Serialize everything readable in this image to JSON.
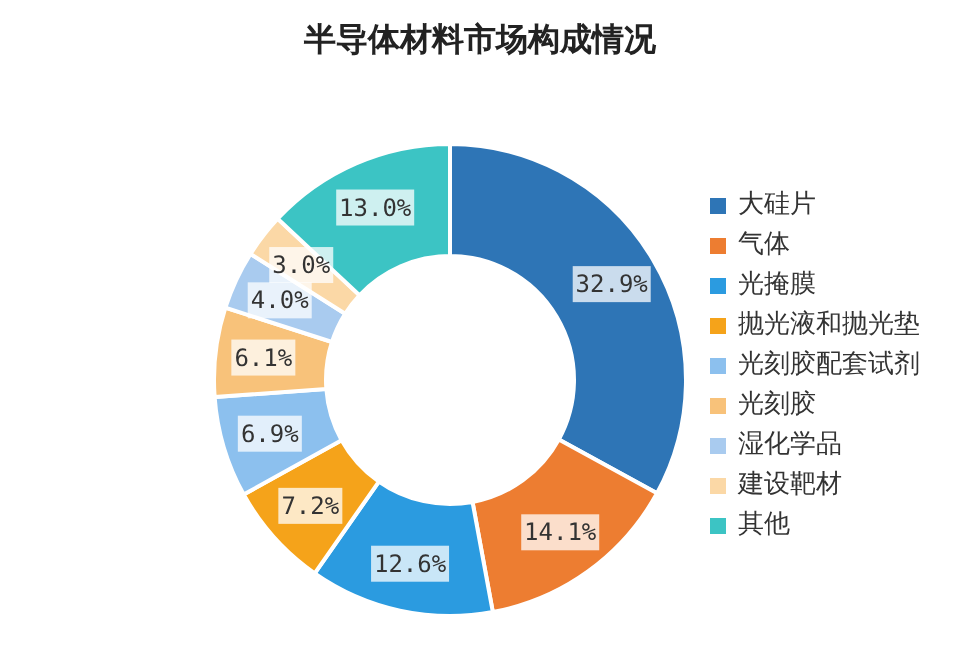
{
  "chart_data": {
    "type": "donut",
    "title": "半导体材料市场构成情况",
    "categories": [
      "大硅片",
      "气体",
      "光掩膜",
      "抛光液和抛光垫",
      "光刻胶配套试剂",
      "光刻胶",
      "湿化学品",
      "建设靶材",
      "其他"
    ],
    "values": [
      32.9,
      14.1,
      12.6,
      7.2,
      6.9,
      6.1,
      4.0,
      3.0,
      13.0
    ],
    "value_labels": [
      "32.9%",
      "14.1%",
      "12.6%",
      "7.2%",
      "6.9%",
      "6.1%",
      "4.0%",
      "3.0%",
      "13.0%"
    ],
    "colors": [
      "#2e75b6",
      "#ed7d31",
      "#2b9be0",
      "#f5a31a",
      "#8cc0ee",
      "#f8c27a",
      "#a9cbef",
      "#fbd8a6",
      "#3cc4c4"
    ],
    "legend": "right"
  }
}
